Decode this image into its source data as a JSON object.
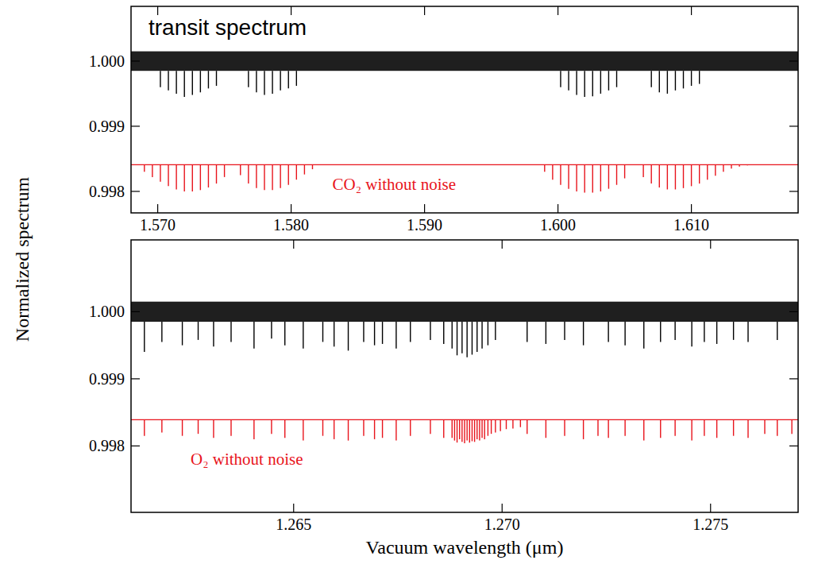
{
  "chart_data": [
    {
      "type": "spectrum",
      "title": "transit spectrum",
      "ylabel": "Normalized spectrum",
      "xlim": [
        1.568,
        1.618
      ],
      "ylim": [
        0.99767,
        1.00084
      ],
      "xticks": [
        {
          "value": 1.57,
          "label": "1.570"
        },
        {
          "value": 1.58,
          "label": "1.580"
        },
        {
          "value": 1.59,
          "label": "1.590"
        },
        {
          "value": 1.6,
          "label": "1.600"
        },
        {
          "value": 1.61,
          "label": "1.610"
        }
      ],
      "yticks": [
        0.998,
        0.999,
        {
          "value": 1,
          "label": "1.000"
        }
      ],
      "series": [
        {
          "color": "#000000",
          "band": [
            0.99985,
            1.00015
          ],
          "x": [
            1.5702,
            1.5708,
            1.5714,
            1.572,
            1.5726,
            1.5732,
            1.5738,
            1.5744,
            1.5768,
            1.5774,
            1.578,
            1.5786,
            1.5792,
            1.5798,
            1.5804,
            1.6002,
            1.6008,
            1.6014,
            1.602,
            1.6026,
            1.6032,
            1.6038,
            1.6044,
            1.607,
            1.6076,
            1.6082,
            1.6088,
            1.6094,
            1.61,
            1.6106
          ],
          "values": [
            0.9996,
            0.99955,
            0.9995,
            0.99945,
            0.99948,
            0.99952,
            0.99958,
            0.99962,
            0.9996,
            0.99952,
            0.99948,
            0.9995,
            0.99955,
            0.99958,
            0.99962,
            0.9996,
            0.99955,
            0.99948,
            0.99945,
            0.99946,
            0.9995,
            0.99955,
            0.9996,
            0.9996,
            0.99952,
            0.9995,
            0.99955,
            0.99958,
            0.99962,
            0.99965
          ]
        },
        {
          "name": "CO₂ without noise",
          "color": "#e8141c",
          "baseline": 0.99841,
          "x": [
            1.569,
            1.5696,
            1.5702,
            1.5708,
            1.5714,
            1.572,
            1.5726,
            1.5732,
            1.5738,
            1.5744,
            1.575,
            1.5762,
            1.5768,
            1.5774,
            1.578,
            1.5786,
            1.5792,
            1.5798,
            1.5804,
            1.581,
            1.5816,
            1.599,
            1.5996,
            1.6002,
            1.6008,
            1.6014,
            1.602,
            1.6026,
            1.6032,
            1.6038,
            1.6044,
            1.605,
            1.6064,
            1.607,
            1.6076,
            1.6082,
            1.6088,
            1.6094,
            1.61,
            1.6106,
            1.6112,
            1.6118,
            1.6124,
            1.613,
            1.6136,
            1.6142
          ],
          "values": [
            0.9983,
            0.99822,
            0.99815,
            0.99808,
            0.99803,
            0.998,
            0.998,
            0.99802,
            0.99806,
            0.99812,
            0.99822,
            0.99825,
            0.99812,
            0.99805,
            0.99802,
            0.99802,
            0.99805,
            0.9981,
            0.99818,
            0.99826,
            0.99834,
            0.9983,
            0.99818,
            0.9981,
            0.99804,
            0.998,
            0.99798,
            0.99798,
            0.998,
            0.99804,
            0.9981,
            0.9982,
            0.99822,
            0.99812,
            0.99806,
            0.99803,
            0.99803,
            0.99805,
            0.99808,
            0.99812,
            0.99818,
            0.99824,
            0.9983,
            0.99835,
            0.99838,
            0.9984
          ]
        }
      ]
    },
    {
      "type": "spectrum",
      "xlabel": "Vacuum wavelength (μm)",
      "xlim": [
        1.2611,
        1.2771
      ],
      "ylim": [
        0.99701,
        1.00107
      ],
      "xticks": [
        1.265,
        {
          "value": 1.27,
          "label": "1.270"
        },
        1.275
      ],
      "yticks": [
        0.998,
        0.999,
        {
          "value": 1,
          "label": "1.000"
        }
      ],
      "series": [
        {
          "color": "#000000",
          "band": [
            0.99985,
            1.00015
          ],
          "x": [
            1.26142,
            1.26184,
            1.26233,
            1.26271,
            1.26308,
            1.2635,
            1.26405,
            1.26447,
            1.26479,
            1.26523,
            1.2657,
            1.26597,
            1.26631,
            1.26668,
            1.26694,
            1.26713,
            1.26746,
            1.2678,
            1.26828,
            1.2686,
            1.2688,
            1.26892,
            1.26904,
            1.26916,
            1.26928,
            1.2694,
            1.26952,
            1.26966,
            1.26984,
            1.2706,
            1.27105,
            1.2715,
            1.27195,
            1.27255,
            1.27295,
            1.2734,
            1.2738,
            1.27415,
            1.27455,
            1.27485,
            1.27515,
            1.27555,
            1.2759,
            1.2766
          ],
          "values": [
            0.9994,
            0.99955,
            0.9995,
            0.99958,
            0.99948,
            0.99955,
            0.99945,
            0.9996,
            0.9995,
            0.99945,
            0.99955,
            0.99948,
            0.99942,
            0.99955,
            0.9995,
            0.99952,
            0.99945,
            0.99955,
            0.99958,
            0.99952,
            0.99945,
            0.99935,
            0.99938,
            0.99932,
            0.99936,
            0.9994,
            0.99945,
            0.9995,
            0.99958,
            0.99955,
            0.99952,
            0.99958,
            0.9995,
            0.99955,
            0.9995,
            0.99945,
            0.99955,
            0.99958,
            0.99948,
            0.99955,
            0.99952,
            0.99958,
            0.99955,
            0.99958
          ]
        },
        {
          "name": "O₂ without noise",
          "color": "#e8141c",
          "baseline": 0.99839,
          "x": [
            1.26142,
            1.26184,
            1.26233,
            1.26271,
            1.26308,
            1.2635,
            1.26405,
            1.26447,
            1.26479,
            1.26523,
            1.2657,
            1.26597,
            1.26631,
            1.26668,
            1.26694,
            1.26713,
            1.26746,
            1.2678,
            1.26828,
            1.2686,
            1.2688,
            1.26886,
            1.26892,
            1.26898,
            1.26904,
            1.2691,
            1.26916,
            1.26922,
            1.26928,
            1.26934,
            1.2694,
            1.26946,
            1.26952,
            1.26958,
            1.26966,
            1.26974,
            1.26984,
            1.26996,
            1.2701,
            1.27026,
            1.27044,
            1.2706,
            1.27105,
            1.2715,
            1.27195,
            1.2723,
            1.27255,
            1.27295,
            1.2734,
            1.2738,
            1.27415,
            1.27455,
            1.27485,
            1.27515,
            1.27555,
            1.2759,
            1.2763,
            1.2766,
            1.27695
          ],
          "values": [
            0.99815,
            0.9982,
            0.99815,
            0.99818,
            0.99812,
            0.99815,
            0.9981,
            0.99818,
            0.99812,
            0.99808,
            0.99815,
            0.9981,
            0.99808,
            0.99815,
            0.9981,
            0.99812,
            0.99808,
            0.99815,
            0.99818,
            0.99812,
            0.99812,
            0.99808,
            0.99805,
            0.9981,
            0.99806,
            0.99804,
            0.99808,
            0.99805,
            0.99807,
            0.99806,
            0.9981,
            0.99808,
            0.99812,
            0.9981,
            0.99815,
            0.99818,
            0.9982,
            0.99822,
            0.99825,
            0.99826,
            0.99828,
            0.99818,
            0.99812,
            0.99815,
            0.9981,
            0.99815,
            0.99812,
            0.99815,
            0.99808,
            0.99812,
            0.99815,
            0.99808,
            0.99815,
            0.99812,
            0.99815,
            0.99812,
            0.99818,
            0.99815,
            0.99818
          ]
        }
      ]
    }
  ]
}
